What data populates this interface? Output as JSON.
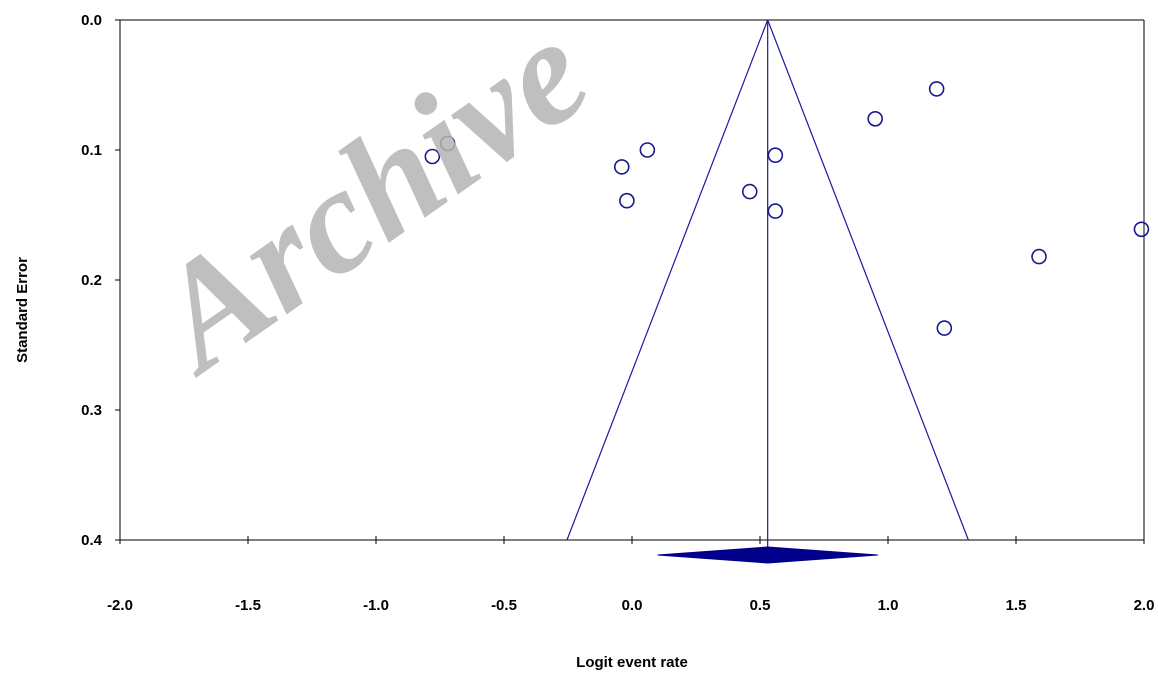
{
  "chart_data": {
    "type": "scatter",
    "subtype": "funnel plot",
    "title": "",
    "xlabel": "Logit event rate",
    "ylabel": "Standard Error",
    "xlim": [
      -2.0,
      2.0
    ],
    "ylim": [
      0.0,
      0.4
    ],
    "y_inverted": true,
    "x_ticks": [
      "-2.0",
      "-1.5",
      "-1.0",
      "-0.5",
      "0.0",
      "0.5",
      "1.0",
      "1.5",
      "2.0"
    ],
    "y_ticks": [
      "0.0",
      "0.1",
      "0.2",
      "0.3",
      "0.4"
    ],
    "grid": false,
    "legend": "none",
    "pooled_estimate": 0.53,
    "funnel_half_width_per_se": 1.96,
    "diamond": {
      "center": 0.53,
      "lower": 0.1,
      "upper": 0.96
    },
    "points": [
      {
        "x": -0.78,
        "y": 0.105
      },
      {
        "x": -0.72,
        "y": 0.095
      },
      {
        "x": -0.04,
        "y": 0.113
      },
      {
        "x": -0.02,
        "y": 0.139
      },
      {
        "x": 0.06,
        "y": 0.1
      },
      {
        "x": 0.46,
        "y": 0.132
      },
      {
        "x": 0.56,
        "y": 0.104
      },
      {
        "x": 0.56,
        "y": 0.147
      },
      {
        "x": 0.95,
        "y": 0.076
      },
      {
        "x": 1.19,
        "y": 0.053
      },
      {
        "x": 1.22,
        "y": 0.237
      },
      {
        "x": 1.59,
        "y": 0.182
      },
      {
        "x": 1.99,
        "y": 0.161
      }
    ],
    "colors": {
      "marker": "#1a1a8c",
      "funnel": "#1a1a9c",
      "diamond": "#00008b",
      "axis": "#000000"
    }
  },
  "watermark": {
    "text": "Archive",
    "color": "#b5b5b5"
  }
}
